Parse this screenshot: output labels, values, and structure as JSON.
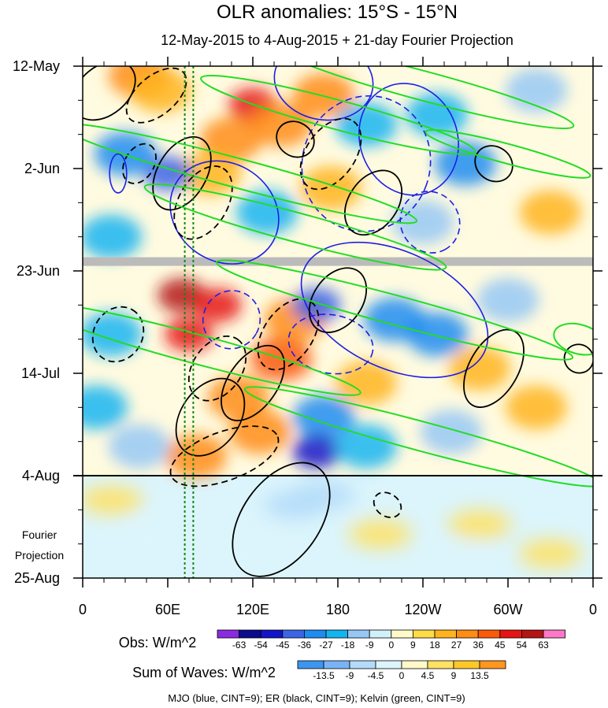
{
  "chart_data": {
    "type": "heatmap",
    "title": "OLR anomalies: 15°S - 15°N",
    "subtitle": "12-May-2015 to 4-Aug-2015 + 21-day Fourier Projection",
    "x_tick_labels": [
      "0",
      "60E",
      "120E",
      "180",
      "120W",
      "60W",
      "0"
    ],
    "x_tick_longitudes": [
      0,
      60,
      120,
      180,
      240,
      300,
      360
    ],
    "xlim": [
      0,
      360
    ],
    "y_tick_labels": [
      "12-May",
      "2-Jun",
      "23-Jun",
      "14-Jul",
      "4-Aug",
      "25-Aug"
    ],
    "y_tick_days": [
      0,
      21,
      42,
      63,
      84,
      105
    ],
    "ylim_days": [
      0,
      105
    ],
    "observation_end_day": 84,
    "missing_data_day": 40,
    "projection_label": [
      "Fourier",
      "Projection"
    ],
    "reference_longitudes": [
      72,
      78
    ],
    "obs_colorbar": {
      "label": "Obs: W/m^2",
      "ticks": [
        "-63",
        "-54",
        "-45",
        "-36",
        "-27",
        "-18",
        "-9",
        "0",
        "9",
        "18",
        "27",
        "36",
        "45",
        "54",
        "63"
      ],
      "colors": [
        "#8a2be2",
        "#0b0b8c",
        "#1414c8",
        "#3c64e6",
        "#1e8cf0",
        "#14b4f0",
        "#96c8f5",
        "#d2f0fa",
        "#fffac8",
        "#ffdc46",
        "#ffb41e",
        "#ff8c14",
        "#fa5a0a",
        "#e61414",
        "#b41414",
        "#ff78c8"
      ]
    },
    "waves_colorbar": {
      "label": "Sum of Waves: W/m^2",
      "ticks": [
        "-13.5",
        "-9",
        "-4.5",
        "0",
        "4.5",
        "9",
        "13.5"
      ],
      "colors": [
        "#3c96f0",
        "#78b4f5",
        "#b4dcfa",
        "#dcf5fc",
        "#fffac8",
        "#ffe164",
        "#ffc828",
        "#ff961e"
      ]
    },
    "footnote": "MJO (blue, CINT=9); ER (black, CINT=9); Kelvin (green, CINT=9)",
    "series": [
      {
        "name": "MJO",
        "color": "#1e1ee6"
      },
      {
        "name": "ER",
        "color": "#000000"
      },
      {
        "name": "Kelvin",
        "color": "#22dd22"
      }
    ],
    "anomaly_blobs": [
      {
        "lon": 40,
        "day": 2,
        "val": 30
      },
      {
        "lon": 55,
        "day": 5,
        "val": 25
      },
      {
        "lon": 120,
        "day": 8,
        "val": 45
      },
      {
        "lon": 140,
        "day": 12,
        "val": 35
      },
      {
        "lon": 170,
        "day": 6,
        "val": 27
      },
      {
        "lon": 105,
        "day": 15,
        "val": 30
      },
      {
        "lon": 90,
        "day": 22,
        "val": 25
      },
      {
        "lon": 60,
        "day": 22,
        "val": -45
      },
      {
        "lon": 30,
        "day": 18,
        "val": -30
      },
      {
        "lon": 200,
        "day": 12,
        "val": -27
      },
      {
        "lon": 250,
        "day": 10,
        "val": -27
      },
      {
        "lon": 270,
        "day": 20,
        "val": -36
      },
      {
        "lon": 320,
        "day": 5,
        "val": -18
      },
      {
        "lon": 175,
        "day": 25,
        "val": 20
      },
      {
        "lon": 130,
        "day": 30,
        "val": -27
      },
      {
        "lon": 240,
        "day": 32,
        "val": -18
      },
      {
        "lon": 330,
        "day": 30,
        "val": 18
      },
      {
        "lon": 20,
        "day": 35,
        "val": -25
      },
      {
        "lon": 70,
        "day": 47,
        "val": 54
      },
      {
        "lon": 95,
        "day": 49,
        "val": 45
      },
      {
        "lon": 75,
        "day": 55,
        "val": 45
      },
      {
        "lon": 140,
        "day": 60,
        "val": 40
      },
      {
        "lon": 150,
        "day": 52,
        "val": 35
      },
      {
        "lon": 165,
        "day": 49,
        "val": -45
      },
      {
        "lon": 220,
        "day": 52,
        "val": -36
      },
      {
        "lon": 250,
        "day": 55,
        "val": -30
      },
      {
        "lon": 300,
        "day": 48,
        "val": -18
      },
      {
        "lon": 20,
        "day": 55,
        "val": -27
      },
      {
        "lon": 10,
        "day": 70,
        "val": -20
      },
      {
        "lon": 110,
        "day": 68,
        "val": 35
      },
      {
        "lon": 125,
        "day": 75,
        "val": 30
      },
      {
        "lon": 80,
        "day": 80,
        "val": 27
      },
      {
        "lon": 170,
        "day": 72,
        "val": -30
      },
      {
        "lon": 165,
        "day": 79,
        "val": -54
      },
      {
        "lon": 200,
        "day": 78,
        "val": -27
      },
      {
        "lon": 260,
        "day": 75,
        "val": -18
      },
      {
        "lon": 320,
        "day": 70,
        "val": 18
      },
      {
        "lon": 40,
        "day": 78,
        "val": -18
      },
      {
        "lon": 280,
        "day": 62,
        "val": 18
      },
      {
        "lon": 200,
        "day": 65,
        "val": 20
      }
    ],
    "projection_blobs": [
      {
        "lon": 150,
        "day": 90,
        "val": -9
      },
      {
        "lon": 170,
        "day": 88,
        "val": -9
      },
      {
        "lon": 50,
        "day": 96,
        "val": -4.5
      },
      {
        "lon": 110,
        "day": 99,
        "val": -4.5
      },
      {
        "lon": 210,
        "day": 96,
        "val": 4.5
      },
      {
        "lon": 280,
        "day": 94,
        "val": 4.5
      },
      {
        "lon": 330,
        "day": 100,
        "val": 4.5
      },
      {
        "lon": 20,
        "day": 89,
        "val": 4.5
      },
      {
        "lon": 268,
        "day": 101,
        "val": -4.5
      }
    ],
    "mjo_contours": [
      {
        "lon": 25,
        "day": 22,
        "rx": 6,
        "ry": 4,
        "rot": 0,
        "dash": false
      },
      {
        "lon": 230,
        "day": 15,
        "rx": 40,
        "ry": 10,
        "rot": 70,
        "dash": false
      },
      {
        "lon": 200,
        "day": 20,
        "rx": 45,
        "ry": 14,
        "rot": 20,
        "dash": true
      },
      {
        "lon": 245,
        "day": 32,
        "rx": 22,
        "ry": 6,
        "rot": 60,
        "dash": true
      },
      {
        "lon": 100,
        "day": 30,
        "rx": 40,
        "ry": 10,
        "rot": 35,
        "dash": false
      },
      {
        "lon": 220,
        "day": 50,
        "rx": 70,
        "ry": 12,
        "rot": 25,
        "dash": false
      },
      {
        "lon": 175,
        "day": 57,
        "rx": 30,
        "ry": 6,
        "rot": 10,
        "dash": true
      },
      {
        "lon": 105,
        "day": 52,
        "rx": 20,
        "ry": 6,
        "rot": 30,
        "dash": true
      },
      {
        "lon": 170,
        "day": 3,
        "rx": 35,
        "ry": 8,
        "rot": 10,
        "dash": false
      }
    ],
    "er_contours": [
      {
        "lon": 15,
        "day": 5,
        "rx": 25,
        "ry": 5,
        "rot": -40,
        "dash": false
      },
      {
        "lon": 52,
        "day": 6,
        "rx": 25,
        "ry": 4,
        "rot": -40,
        "dash": true
      },
      {
        "lon": 40,
        "day": 20,
        "rx": 15,
        "ry": 3,
        "rot": -60,
        "dash": true
      },
      {
        "lon": 70,
        "day": 22,
        "rx": 28,
        "ry": 5,
        "rot": -60,
        "dash": false
      },
      {
        "lon": 85,
        "day": 28,
        "rx": 28,
        "ry": 5,
        "rot": -60,
        "dash": true
      },
      {
        "lon": 150,
        "day": 15,
        "rx": 12,
        "ry": 4,
        "rot": -55,
        "dash": false
      },
      {
        "lon": 175,
        "day": 18,
        "rx": 28,
        "ry": 5,
        "rot": -55,
        "dash": true
      },
      {
        "lon": 205,
        "day": 28,
        "rx": 25,
        "ry": 5,
        "rot": -55,
        "dash": false
      },
      {
        "lon": 290,
        "day": 20,
        "rx": 12,
        "ry": 4,
        "rot": -55,
        "dash": false
      },
      {
        "lon": 25,
        "day": 55,
        "rx": 20,
        "ry": 5,
        "rot": -60,
        "dash": true
      },
      {
        "lon": 90,
        "day": 72,
        "rx": 30,
        "ry": 6,
        "rot": -55,
        "dash": false
      },
      {
        "lon": 95,
        "day": 62,
        "rx": 25,
        "ry": 5,
        "rot": -55,
        "dash": true
      },
      {
        "lon": 120,
        "day": 65,
        "rx": 30,
        "ry": 5,
        "rot": -55,
        "dash": false
      },
      {
        "lon": 145,
        "day": 55,
        "rx": 28,
        "ry": 5,
        "rot": -55,
        "dash": true
      },
      {
        "lon": 180,
        "day": 48,
        "rx": 25,
        "ry": 5,
        "rot": -55,
        "dash": false
      },
      {
        "lon": 100,
        "day": 80,
        "rx": 40,
        "ry": 5,
        "rot": -20,
        "dash": true
      },
      {
        "lon": 140,
        "day": 93,
        "rx": 45,
        "ry": 8,
        "rot": -55,
        "dash": false
      },
      {
        "lon": 290,
        "day": 62,
        "rx": 30,
        "ry": 5,
        "rot": -60,
        "dash": false
      },
      {
        "lon": 350,
        "day": 60,
        "rx": 10,
        "ry": 3,
        "rot": -55,
        "dash": false
      },
      {
        "lon": 215,
        "day": 90,
        "rx": 8,
        "ry": 3,
        "rot": -55,
        "dash": true
      }
    ],
    "kelvin_contours": [
      {
        "lon": 240,
        "day": 4,
        "rx": 110,
        "ry": 3,
        "rot": 15
      },
      {
        "lon": 180,
        "day": 10,
        "rx": 100,
        "ry": 3,
        "rot": 15
      },
      {
        "lon": 110,
        "day": 22,
        "rx": 130,
        "ry": 3,
        "rot": 15
      },
      {
        "lon": 300,
        "day": 18,
        "rx": 60,
        "ry": 2,
        "rot": 15
      },
      {
        "lon": 150,
        "day": 33,
        "rx": 110,
        "ry": 3,
        "rot": 15
      },
      {
        "lon": 220,
        "day": 50,
        "rx": 130,
        "ry": 3,
        "rot": 15
      },
      {
        "lon": 80,
        "day": 58,
        "rx": 120,
        "ry": 3,
        "rot": 15
      },
      {
        "lon": 240,
        "day": 76,
        "rx": 130,
        "ry": 3,
        "rot": 15
      },
      {
        "lon": 350,
        "day": 56,
        "rx": 18,
        "ry": 3,
        "rot": 15
      }
    ]
  }
}
